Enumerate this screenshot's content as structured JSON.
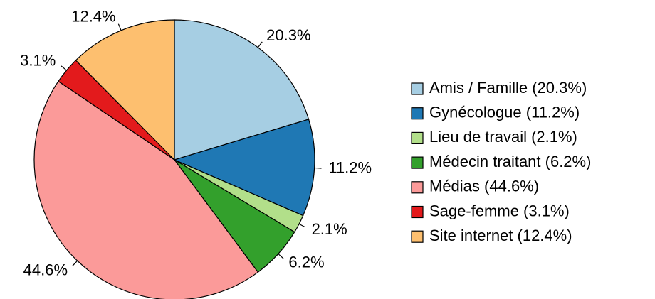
{
  "chart_data": {
    "type": "pie",
    "categories": [
      "Amis / Famille (20.3%)",
      "Gynécologue (11.2%)",
      "Lieu de travail (2.1%)",
      "Médecin traitant (6.2%)",
      "Médias (44.6%)",
      "Sage-femme (3.1%)",
      "Site internet (12.4%)"
    ],
    "values": [
      20.3,
      11.2,
      2.1,
      6.2,
      44.6,
      3.1,
      12.4
    ],
    "value_labels": [
      "20.3%",
      "11.2%",
      "2.1%",
      "6.2%",
      "44.6%",
      "3.1%",
      "12.4%"
    ],
    "colors": [
      "#A6CEE3",
      "#1F78B4",
      "#B2DF8A",
      "#33A02C",
      "#FB9A99",
      "#E31A1C",
      "#FDBF6F"
    ],
    "legend": "right"
  }
}
